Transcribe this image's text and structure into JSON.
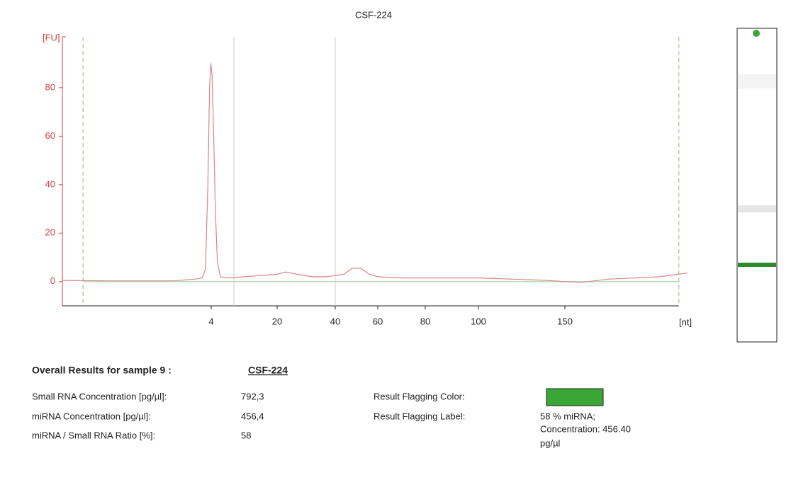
{
  "chart_data": {
    "type": "line",
    "title": "CSF-224",
    "y_label": "[FU]",
    "x_label": "[nt]",
    "x": [
      -32,
      -20,
      -5,
      0,
      1.8,
      2.6,
      3.2,
      3.6,
      3.9,
      4.2,
      4.6,
      5,
      5.5,
      6.2,
      8,
      12,
      16,
      20,
      23,
      27,
      32,
      37,
      40,
      44,
      48,
      52,
      56,
      60,
      70,
      80,
      90,
      100,
      120,
      140,
      150,
      160,
      175,
      190,
      205,
      215,
      221
    ],
    "values": [
      0.5,
      0.3,
      0.3,
      1,
      1.5,
      5,
      40,
      80,
      90,
      85,
      60,
      30,
      8,
      2,
      1.5,
      2,
      2.5,
      3,
      4,
      3,
      2,
      2,
      2.5,
      3,
      5.5,
      5.5,
      3,
      2,
      1.5,
      1.5,
      1.5,
      1.5,
      1,
      0.5,
      0,
      -0.3,
      1,
      1.5,
      2,
      3,
      3.5
    ],
    "color": "#d98585",
    "xlim": [
      -32,
      221
    ],
    "xticks": [
      4,
      20,
      40,
      60,
      80,
      100,
      150
    ],
    "ylim": [
      -10,
      101
    ],
    "yticks": [
      0,
      20,
      40,
      60,
      80
    ],
    "markers": [
      -27,
      216
    ],
    "region_lines": [
      9.5,
      40
    ]
  },
  "results": {
    "heading": "Overall Results for sample 9  :",
    "sample": "CSF-224",
    "rows": [
      [
        "Small RNA Concentration [pg/µl]:",
        "792,3"
      ],
      [
        "miRNA Concentration [pg/µl]:",
        "456,4"
      ],
      [
        "miRNA / Small RNA Ratio [%]:",
        "58"
      ]
    ],
    "flag_color_label": "Result Flagging Color:",
    "flag_color": "#3aa635",
    "flag_label_label": "Result Flagging Label:",
    "flag_label": [
      "58 % miRNA;",
      "Concentration: 456.40",
      "pg/µl"
    ]
  }
}
